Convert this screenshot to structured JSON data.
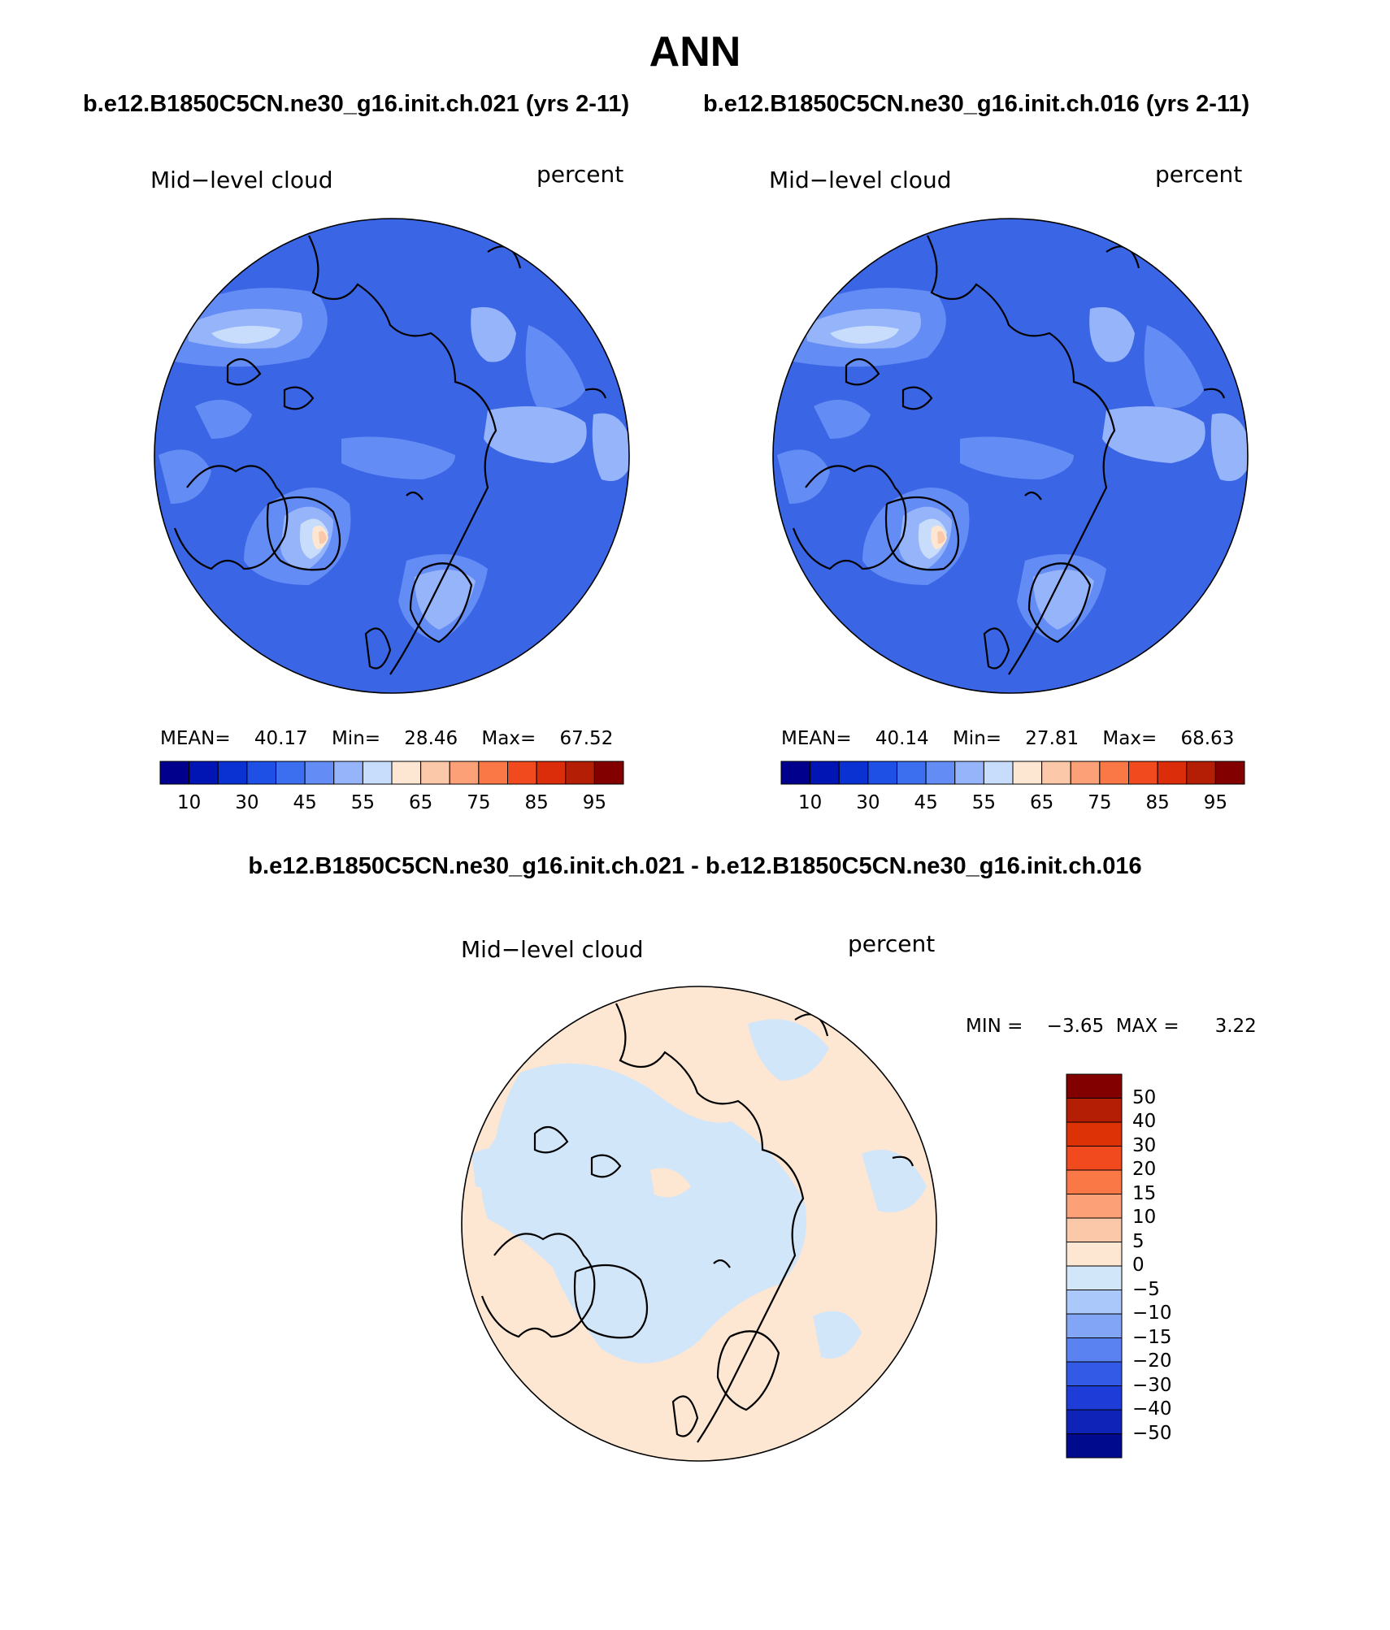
{
  "page_title": "ANN",
  "case_titles": [
    "b.e12.B1850C5CN.ne30_g16.init.ch.021 (yrs 2-11)",
    "b.e12.B1850C5CN.ne30_g16.init.ch.016 (yrs 2-11)"
  ],
  "diff_title": "b.e12.B1850C5CN.ne30_g16.init.ch.021 - b.e12.B1850C5CN.ne30_g16.init.ch.016",
  "panels": [
    {
      "variable": "Mid−level cloud",
      "units": "percent",
      "stats": {
        "mean_label": "MEAN=",
        "mean": "40.17",
        "min_label": "Min=",
        "min": "28.46",
        "max_label": "Max=",
        "max": "67.52"
      }
    },
    {
      "variable": "Mid−level cloud",
      "units": "percent",
      "stats": {
        "mean_label": "MEAN=",
        "mean": "40.14",
        "min_label": "Min=",
        "min": "27.81",
        "max_label": "Max=",
        "max": "68.63"
      }
    }
  ],
  "diff_panel": {
    "variable": "Mid−level cloud",
    "units": "percent",
    "min_label": "MIN =",
    "min": "−3.65",
    "max_label": "MAX =",
    "max": "3.22"
  },
  "abs_colorbar": {
    "colors": [
      "#00008c",
      "#0015b4",
      "#0a32d2",
      "#1e50e6",
      "#3c6ef0",
      "#648cf5",
      "#96b4fa",
      "#c8dcfc",
      "#fde6d2",
      "#fcc8aa",
      "#fca078",
      "#fa7846",
      "#f04a1e",
      "#dc2d0a",
      "#b41e05",
      "#820000"
    ],
    "tick_labels": [
      "10",
      "30",
      "45",
      "55",
      "65",
      "75",
      "85",
      "95"
    ]
  },
  "diff_colorbar": {
    "colors_top_to_bottom": [
      "#820000",
      "#b41e05",
      "#dc3205",
      "#f04a1e",
      "#fa7846",
      "#fca078",
      "#fcc8aa",
      "#fde6d2",
      "#d2e6fa",
      "#aac8fa",
      "#82a5f5",
      "#5a82f0",
      "#325ae6",
      "#1e3cd7",
      "#0f23b9",
      "#000a8c"
    ],
    "tick_labels": [
      "50",
      "40",
      "30",
      "20",
      "15",
      "10",
      "5",
      "0",
      "−5",
      "−10",
      "−15",
      "−20",
      "−30",
      "−40",
      "−50"
    ]
  },
  "map_colors": {
    "background_blue": "#3a66e6",
    "deep_blue": "#1e50e6",
    "medium_blue": "#648cf5",
    "light_blue": "#96b4fa",
    "pale_blue": "#c8dcfc",
    "peach": "#fde6d2",
    "light_orange": "#fcc8aa",
    "diff_peach": "#fde6d2",
    "diff_pale_blue": "#d2e6fa"
  }
}
